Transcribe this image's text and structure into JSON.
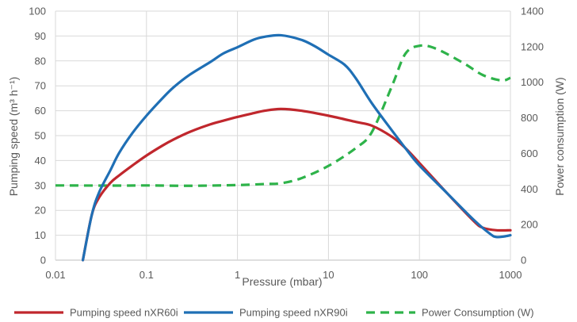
{
  "chart_data": {
    "type": "line",
    "x_scale": "log",
    "xlim": [
      0.01,
      1000
    ],
    "y_left_lim": [
      0,
      100
    ],
    "y_right_lim": [
      0,
      1400
    ],
    "grid": true,
    "legend_position": "bottom",
    "xlabel": "Pressure (mbar)",
    "ylabel_left": "Pumping speed (m³ h⁻¹)",
    "ylabel_right": "Power consumption (W)",
    "x_ticks": [
      0.01,
      0.1,
      1,
      10,
      100,
      1000
    ],
    "x_tick_labels": [
      "0.01",
      "0.1",
      "1",
      "10",
      "100",
      "1000"
    ],
    "y_left_ticks": [
      0,
      10,
      20,
      30,
      40,
      50,
      60,
      70,
      80,
      90,
      100
    ],
    "y_left_tick_labels": [
      "0",
      "10",
      "20",
      "30",
      "40",
      "50",
      "60",
      "70",
      "80",
      "90",
      "100"
    ],
    "y_right_ticks": [
      0,
      200,
      400,
      600,
      800,
      1000,
      1200,
      1400
    ],
    "y_right_tick_labels": [
      "0",
      "200",
      "400",
      "600",
      "800",
      "1000",
      "1200",
      "1400"
    ],
    "series": [
      {
        "name": "Pumping speed nXR60i",
        "axis": "left",
        "color": "#c0272d",
        "style": "solid",
        "points": [
          [
            0.02,
            0
          ],
          [
            0.025,
            18
          ],
          [
            0.03,
            25
          ],
          [
            0.04,
            31
          ],
          [
            0.05,
            34
          ],
          [
            0.07,
            38
          ],
          [
            0.1,
            42
          ],
          [
            0.15,
            46
          ],
          [
            0.2,
            48.5
          ],
          [
            0.3,
            51.5
          ],
          [
            0.5,
            54.5
          ],
          [
            0.7,
            56
          ],
          [
            1,
            57.5
          ],
          [
            1.5,
            59
          ],
          [
            2,
            60
          ],
          [
            3,
            60.7
          ],
          [
            5,
            60
          ],
          [
            10,
            58
          ],
          [
            20,
            55.5
          ],
          [
            30,
            54
          ],
          [
            50,
            49.5
          ],
          [
            70,
            45
          ],
          [
            100,
            39
          ],
          [
            200,
            27
          ],
          [
            400,
            15.5
          ],
          [
            500,
            13
          ],
          [
            700,
            12
          ],
          [
            1000,
            12
          ]
        ]
      },
      {
        "name": "Pumping speed nXR90i",
        "axis": "left",
        "color": "#1f6fb5",
        "style": "solid",
        "points": [
          [
            0.02,
            0
          ],
          [
            0.025,
            18
          ],
          [
            0.03,
            27
          ],
          [
            0.04,
            36
          ],
          [
            0.05,
            43
          ],
          [
            0.07,
            51
          ],
          [
            0.1,
            58
          ],
          [
            0.15,
            65
          ],
          [
            0.2,
            69.5
          ],
          [
            0.3,
            74.5
          ],
          [
            0.5,
            79.5
          ],
          [
            0.7,
            83
          ],
          [
            1,
            85.5
          ],
          [
            1.5,
            88.5
          ],
          [
            2,
            89.7
          ],
          [
            3,
            90.3
          ],
          [
            5,
            88.5
          ],
          [
            7,
            86
          ],
          [
            10,
            82.5
          ],
          [
            15,
            78.5
          ],
          [
            20,
            73
          ],
          [
            30,
            63
          ],
          [
            50,
            52
          ],
          [
            70,
            45
          ],
          [
            100,
            38
          ],
          [
            200,
            27
          ],
          [
            400,
            16
          ],
          [
            600,
            10.5
          ],
          [
            700,
            9.3
          ],
          [
            850,
            9.5
          ],
          [
            1000,
            10
          ]
        ]
      },
      {
        "name": "Power Consumption (W)",
        "axis": "right",
        "color": "#2eb34a",
        "style": "dashed",
        "points": [
          [
            0.01,
            420
          ],
          [
            0.05,
            419
          ],
          [
            0.1,
            420
          ],
          [
            0.3,
            418
          ],
          [
            1,
            422
          ],
          [
            2,
            428
          ],
          [
            3,
            432
          ],
          [
            5,
            460
          ],
          [
            10,
            530
          ],
          [
            20,
            630
          ],
          [
            30,
            720
          ],
          [
            50,
            980
          ],
          [
            70,
            1160
          ],
          [
            100,
            1205
          ],
          [
            150,
            1190
          ],
          [
            300,
            1110
          ],
          [
            500,
            1040
          ],
          [
            800,
            1010
          ],
          [
            1000,
            1025
          ]
        ]
      }
    ]
  }
}
